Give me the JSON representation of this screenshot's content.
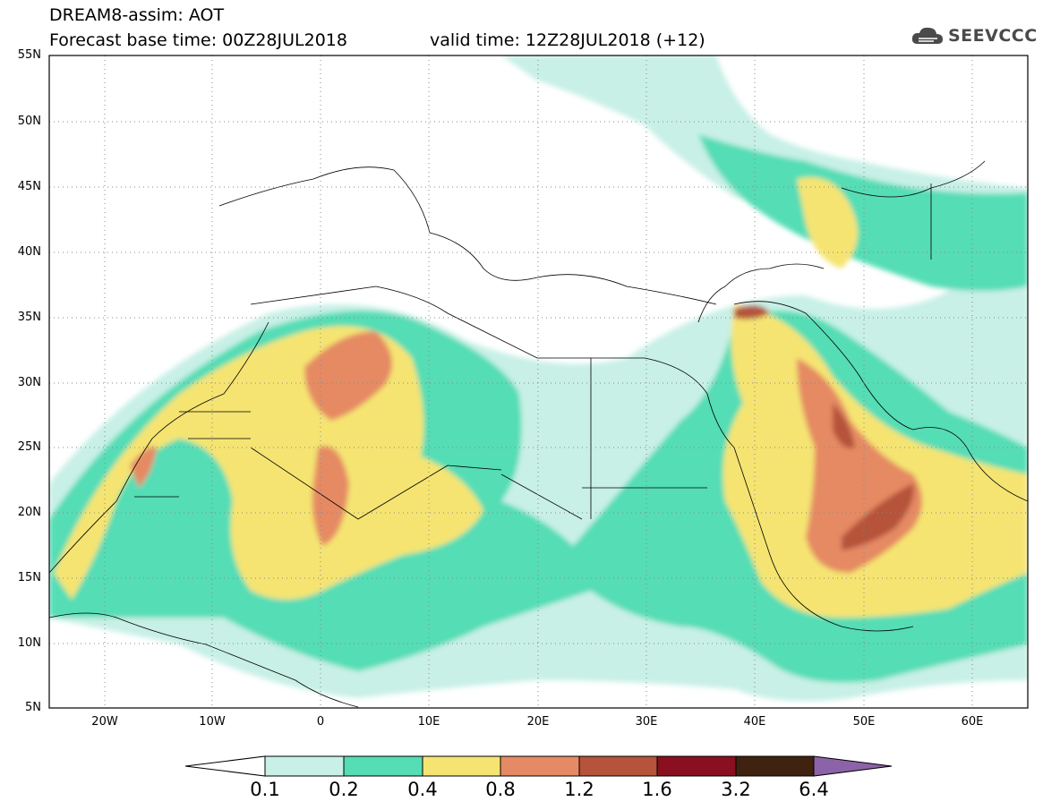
{
  "header": {
    "title_line1": "DREAM8-assim: AOT",
    "title_line2": "Forecast base time: 00Z28JUL2018",
    "valid_time": "valid time: 12Z28JUL2018 (+12)",
    "logo_text": "SEEVCCC"
  },
  "map": {
    "lat_labels": [
      "55N",
      "50N",
      "45N",
      "40N",
      "35N",
      "30N",
      "25N",
      "20N",
      "15N",
      "10N",
      "5N"
    ],
    "lon_labels": [
      "20W",
      "10W",
      "0",
      "10E",
      "20E",
      "30E",
      "40E",
      "50E",
      "60E"
    ]
  },
  "colorbar": {
    "labels": [
      "0.1",
      "0.2",
      "0.4",
      "0.8",
      "1.2",
      "1.6",
      "3.2",
      "6.4"
    ],
    "colors": [
      "#ffffff",
      "#c8f0e6",
      "#55ddb5",
      "#f5e472",
      "#e58a64",
      "#b5533b",
      "#8a0f20",
      "#402211",
      "#8c63a8"
    ]
  }
}
